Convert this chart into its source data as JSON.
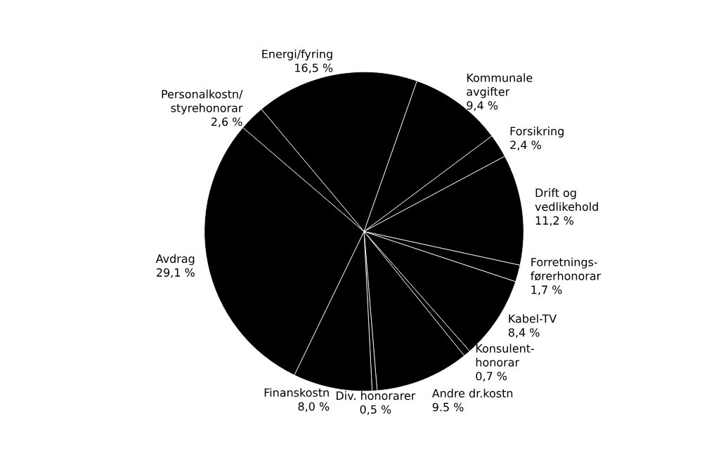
{
  "chart_data": {
    "type": "pie",
    "categories": [
      "Energi/fyring",
      "Kommunale\navgifter",
      "Forsikring",
      "Drift og\nvedlikehold",
      "Forretnings-\nførerhonorar",
      "Kabel-TV",
      "Konsulent-\nhonorar",
      "Andre dr.kostn",
      "Div. honorarer",
      "Finanskostn",
      "Avdrag",
      "Personalkostn/\nstyrehonorar"
    ],
    "values": [
      16.5,
      9.4,
      2.4,
      11.2,
      1.7,
      8.4,
      0.7,
      9.5,
      0.5,
      8.0,
      29.1,
      2.6
    ],
    "value_labels": [
      "16,5 %",
      "9,4 %",
      "2,4 %",
      "11,2 %",
      "1,7 %",
      "8,4 %",
      "0,7 %",
      "9.5 %",
      "0,5 %",
      "8,0 %",
      "29,1 %",
      "2,6 %"
    ],
    "colors": [
      "#000000",
      "#000000",
      "#000000",
      "#000000",
      "#000000",
      "#000000",
      "#000000",
      "#000000",
      "#000000",
      "#000000",
      "#000000",
      "#000000"
    ],
    "legend": false
  }
}
